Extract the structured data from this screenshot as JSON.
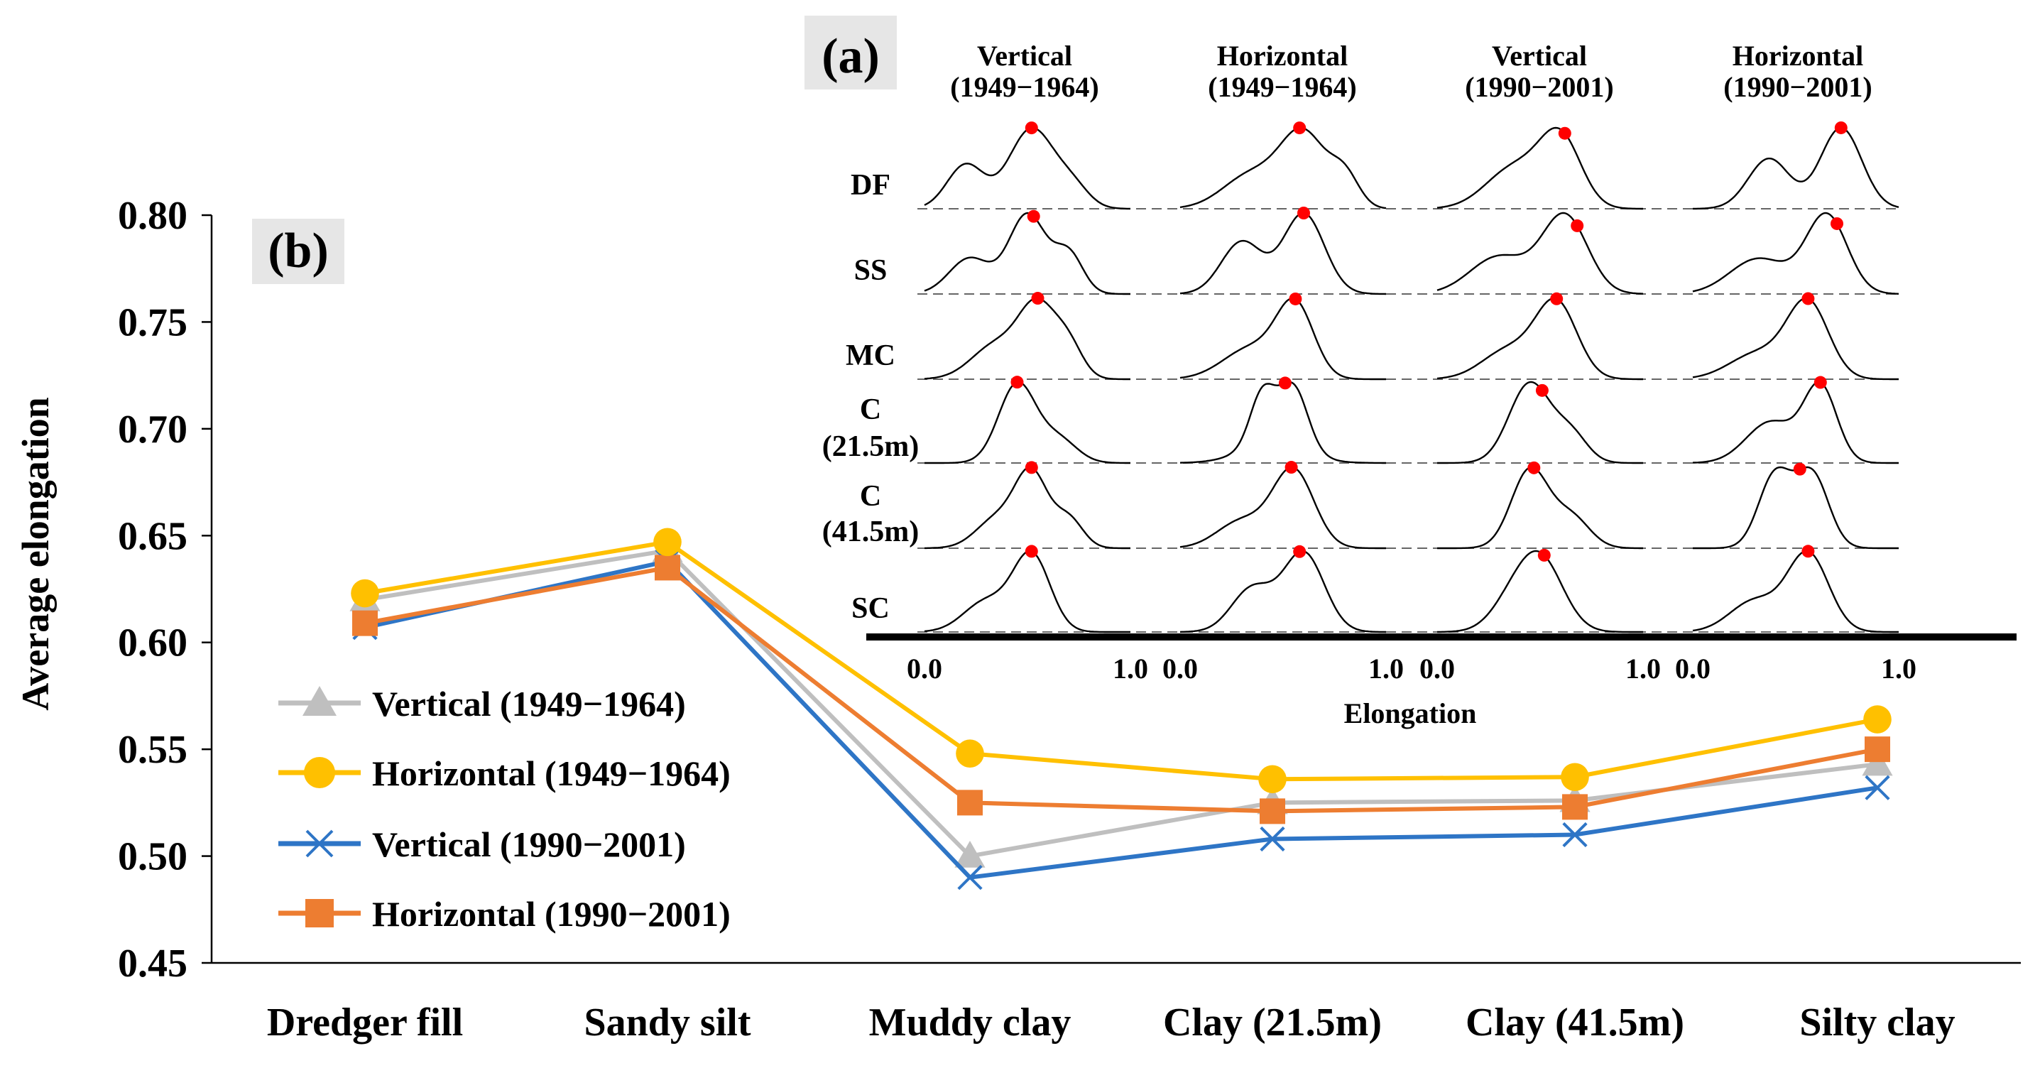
{
  "chart_data": [
    {
      "type": "line",
      "panel": "(b)",
      "ylabel": "Average elongation",
      "xlabel": "",
      "ylim": [
        0.45,
        0.8
      ],
      "yticks": [
        "0.80",
        "0.75",
        "0.70",
        "0.65",
        "0.60",
        "0.55",
        "0.50",
        "0.45"
      ],
      "categories": [
        "Dredger fill",
        "Sandy silt",
        "Muddy clay",
        "Clay (21.5m)",
        "Clay (41.5m)",
        "Silty clay"
      ],
      "legend_position": "left",
      "series": [
        {
          "name": "Vertical (1949−1964)",
          "marker": "triangle",
          "color": "#bfbfbf",
          "values": [
            0.62,
            0.643,
            0.5,
            0.525,
            0.526,
            0.543
          ]
        },
        {
          "name": "Horizontal (1949−1964)",
          "marker": "circle",
          "color": "#ffc000",
          "values": [
            0.623,
            0.647,
            0.548,
            0.536,
            0.537,
            0.564
          ]
        },
        {
          "name": "Vertical (1990−2001)",
          "marker": "x",
          "color": "#2e75c6",
          "values": [
            0.607,
            0.638,
            0.49,
            0.508,
            0.51,
            0.532
          ]
        },
        {
          "name": "Horizontal (1990−2001)",
          "marker": "square",
          "color": "#ed7d31",
          "values": [
            0.609,
            0.635,
            0.525,
            0.521,
            0.523,
            0.55
          ]
        }
      ]
    },
    {
      "type": "area",
      "panel": "(a)",
      "xlabel": "Elongation",
      "xlim": [
        0.0,
        1.0
      ],
      "xtick_labels": [
        "0.0",
        "1.0"
      ],
      "columns": [
        "Vertical\n(1949−1964)",
        "Horizontal\n(1949−1964)",
        "Vertical\n(1990−2001)",
        "Horizontal\n(1990−2001)"
      ],
      "rows": [
        "DF",
        "SS",
        "MC",
        "C\n(21.5m)",
        "C\n(41.5m)",
        "SC"
      ],
      "peak_color": "#ff0000",
      "distributions": [
        [
          {
            "peaks": [
              [
                0.2,
                0.55,
                0.09
              ],
              [
                0.52,
                1.0,
                0.11
              ],
              [
                0.72,
                0.25,
                0.08
              ]
            ],
            "peak": 0.52
          },
          {
            "peaks": [
              [
                0.35,
                0.45,
                0.14
              ],
              [
                0.6,
                0.95,
                0.11
              ],
              [
                0.8,
                0.4,
                0.07
              ]
            ],
            "peak": 0.58
          },
          {
            "peaks": [
              [
                0.38,
                0.62,
                0.14
              ],
              [
                0.6,
                1.0,
                0.1
              ]
            ],
            "peak": 0.62
          },
          {
            "peaks": [
              [
                0.37,
                0.62,
                0.1
              ],
              [
                0.72,
                1.0,
                0.1
              ]
            ],
            "peak": 0.72
          }
        ],
        [
          {
            "peaks": [
              [
                0.22,
                0.45,
                0.1
              ],
              [
                0.5,
                1.0,
                0.09
              ],
              [
                0.7,
                0.5,
                0.07
              ]
            ],
            "peak": 0.53
          },
          {
            "peaks": [
              [
                0.3,
                0.65,
                0.1
              ],
              [
                0.6,
                1.0,
                0.1
              ]
            ],
            "peak": 0.6
          },
          {
            "peaks": [
              [
                0.3,
                0.48,
                0.14
              ],
              [
                0.62,
                1.0,
                0.11
              ]
            ],
            "peak": 0.68
          },
          {
            "peaks": [
              [
                0.32,
                0.45,
                0.14
              ],
              [
                0.65,
                1.0,
                0.1
              ]
            ],
            "peak": 0.7
          }
        ],
        [
          {
            "peaks": [
              [
                0.35,
                0.5,
                0.12
              ],
              [
                0.55,
                1.0,
                0.09
              ],
              [
                0.7,
                0.45,
                0.07
              ]
            ],
            "peak": 0.55
          },
          {
            "peaks": [
              [
                0.35,
                0.45,
                0.14
              ],
              [
                0.56,
                1.0,
                0.09
              ]
            ],
            "peak": 0.56
          },
          {
            "peaks": [
              [
                0.35,
                0.4,
                0.13
              ],
              [
                0.58,
                1.0,
                0.1
              ]
            ],
            "peak": 0.58
          },
          {
            "peaks": [
              [
                0.32,
                0.35,
                0.14
              ],
              [
                0.56,
                1.0,
                0.1
              ]
            ],
            "peak": 0.56
          }
        ],
        [
          {
            "peaks": [
              [
                0.45,
                1.0,
                0.09
              ],
              [
                0.65,
                0.3,
                0.09
              ]
            ],
            "peak": 0.45
          },
          {
            "peaks": [
              [
                0.4,
                0.8,
                0.06
              ],
              [
                0.55,
                0.95,
                0.07
              ],
              [
                0.45,
                0.3,
                0.15
              ]
            ],
            "peak": 0.51
          },
          {
            "peaks": [
              [
                0.45,
                1.0,
                0.1
              ],
              [
                0.65,
                0.35,
                0.08
              ]
            ],
            "peak": 0.51
          },
          {
            "peaks": [
              [
                0.38,
                0.55,
                0.12
              ],
              [
                0.62,
                1.0,
                0.08
              ]
            ],
            "peak": 0.62
          }
        ],
        [
          {
            "peaks": [
              [
                0.35,
                0.4,
                0.1
              ],
              [
                0.52,
                1.0,
                0.08
              ],
              [
                0.7,
                0.4,
                0.07
              ]
            ],
            "peak": 0.52
          },
          {
            "peaks": [
              [
                0.3,
                0.35,
                0.12
              ],
              [
                0.55,
                1.0,
                0.1
              ]
            ],
            "peak": 0.54
          },
          {
            "peaks": [
              [
                0.45,
                1.0,
                0.09
              ],
              [
                0.65,
                0.4,
                0.09
              ]
            ],
            "peak": 0.47
          },
          {
            "peaks": [
              [
                0.4,
                0.82,
                0.08
              ],
              [
                0.58,
                0.82,
                0.08
              ]
            ],
            "peak": 0.52
          }
        ],
        [
          {
            "peaks": [
              [
                0.3,
                0.4,
                0.11
              ],
              [
                0.52,
                1.0,
                0.09
              ]
            ],
            "peak": 0.52
          },
          {
            "peaks": [
              [
                0.35,
                0.55,
                0.1
              ],
              [
                0.6,
                1.0,
                0.1
              ]
            ],
            "peak": 0.58
          },
          {
            "peaks": [
              [
                0.5,
                1.0,
                0.11
              ],
              [
                0.35,
                0.3,
                0.1
              ]
            ],
            "peak": 0.52
          },
          {
            "peaks": [
              [
                0.3,
                0.4,
                0.12
              ],
              [
                0.56,
                1.0,
                0.1
              ]
            ],
            "peak": 0.56
          }
        ]
      ]
    }
  ]
}
